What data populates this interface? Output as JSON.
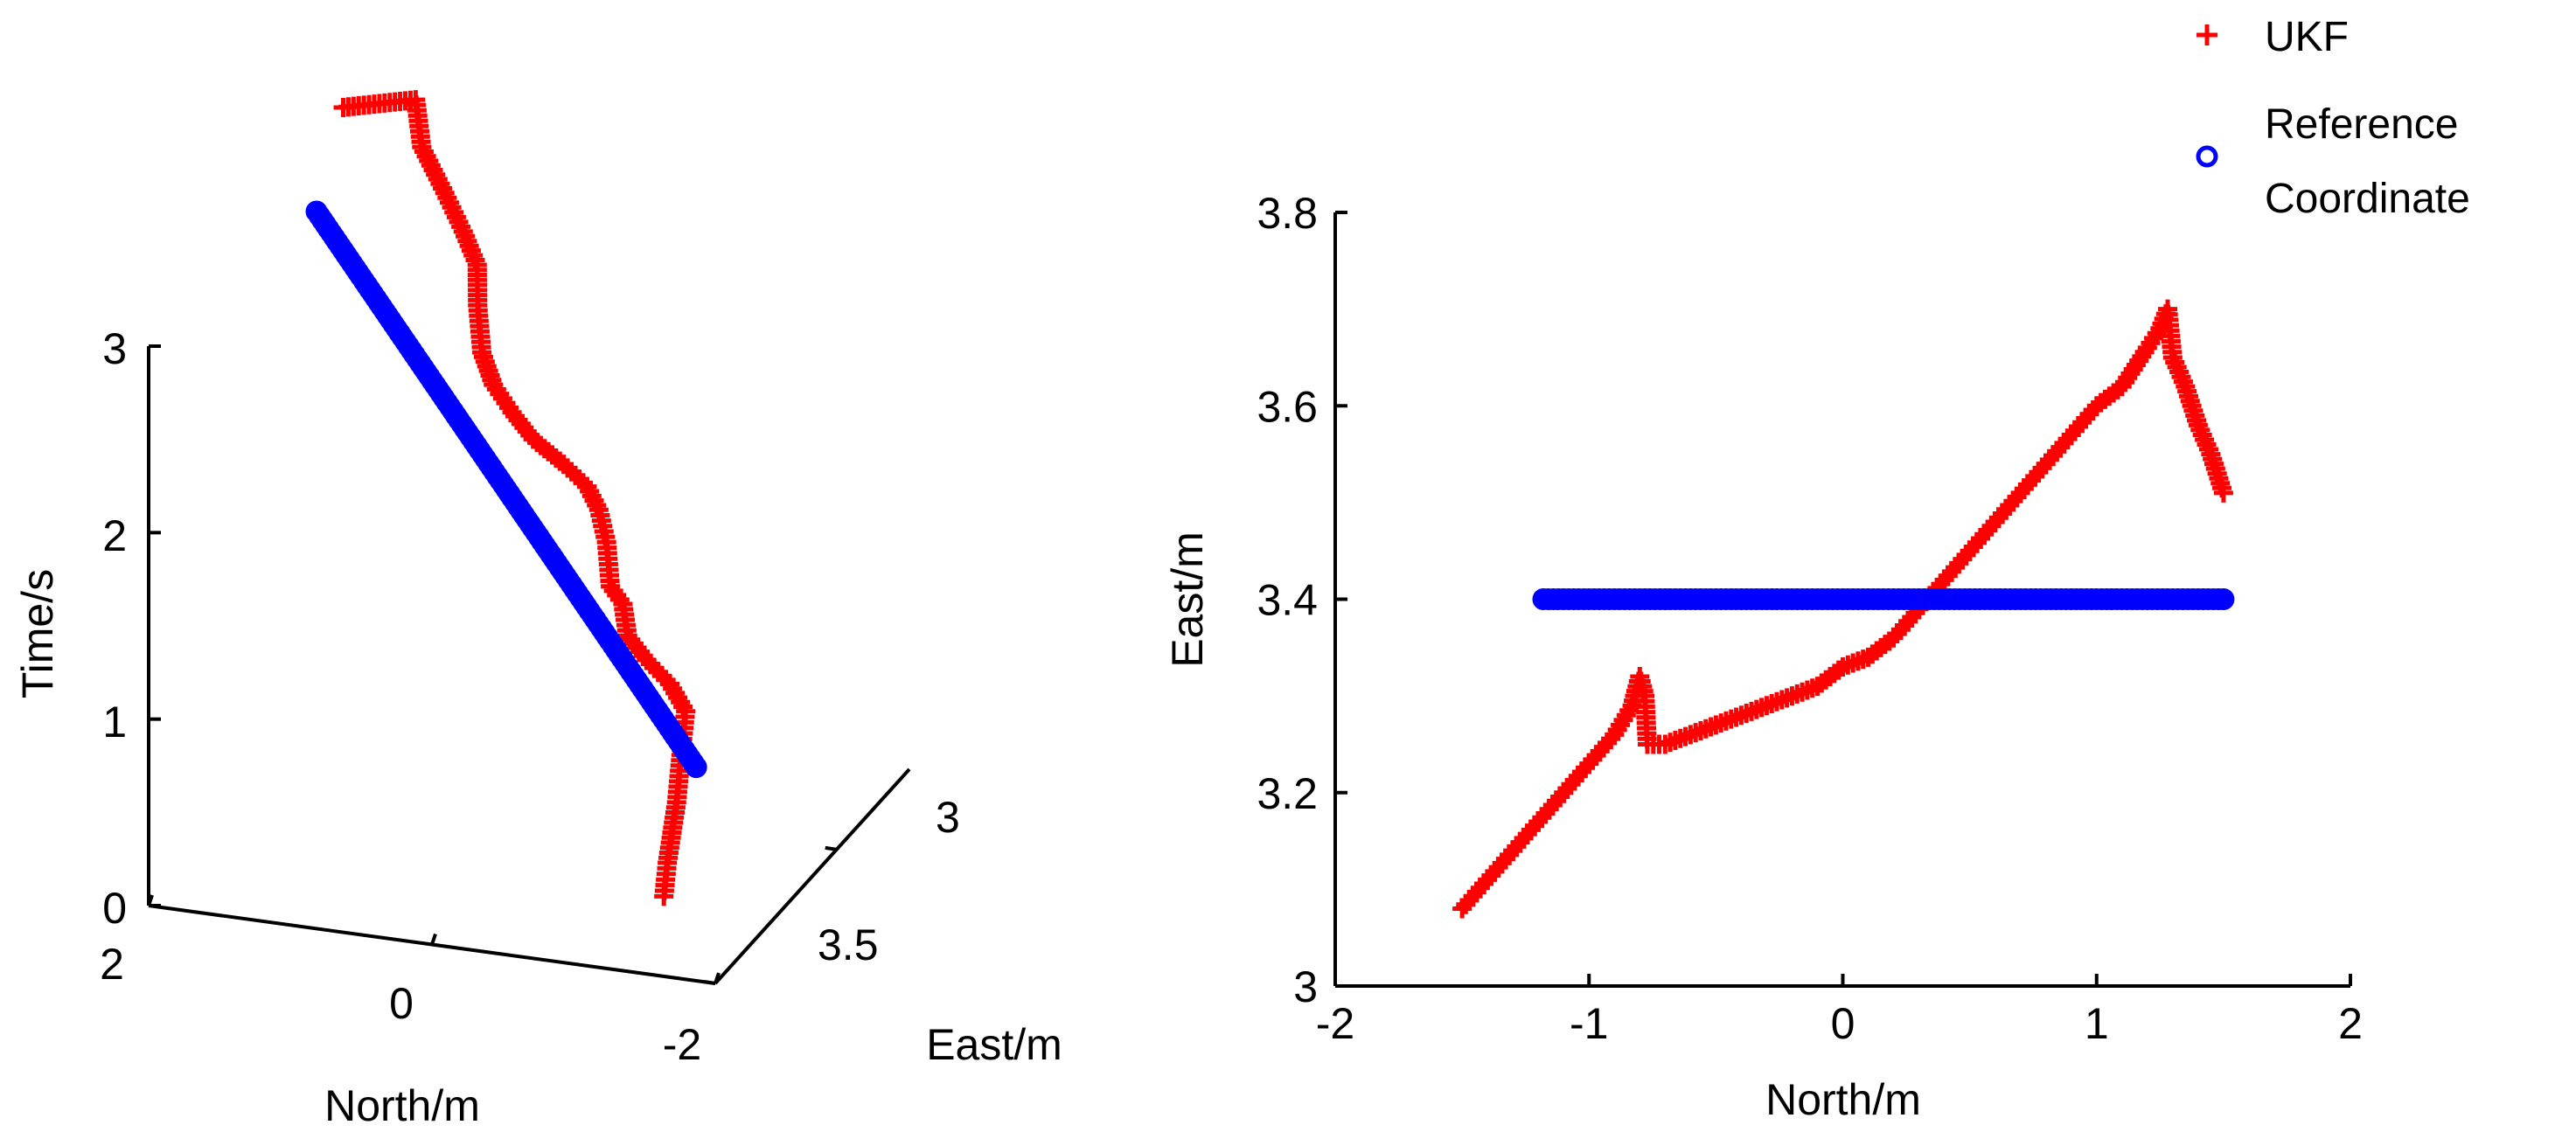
{
  "legend": {
    "placement": "top-right",
    "entries": [
      {
        "label": "UKF",
        "color": "#ff0000",
        "marker": "plus"
      },
      {
        "label_lines": [
          "Reference",
          "Coordinate"
        ],
        "color": "#0000ff",
        "marker": "circle"
      }
    ]
  },
  "chart_data": [
    {
      "type": "line3d",
      "title": "",
      "xlabel": "North/m",
      "ylabel": "East/m",
      "zlabel": "Time/s",
      "x_ticks": [
        "2",
        "0",
        "-2"
      ],
      "y_ticks": [
        "3",
        "3.5"
      ],
      "z_ticks": [
        "0",
        "1",
        "2",
        "3"
      ],
      "x_range": [
        2,
        -2
      ],
      "y_range": [
        3.0,
        3.8
      ],
      "z_range": [
        0,
        3
      ],
      "grid": false,
      "series": [
        {
          "name": "UKF",
          "color": "#ff0000",
          "marker": "plus",
          "points": [
            [
              -1.5,
              3.08,
              0.3
            ],
            [
              -1.49,
              3.1,
              0.45
            ],
            [
              -1.47,
              3.15,
              0.7
            ],
            [
              -1.44,
              3.19,
              0.95
            ],
            [
              -1.38,
              3.24,
              1.05
            ],
            [
              -1.2,
              3.28,
              1.12
            ],
            [
              -1.0,
              3.3,
              1.2
            ],
            [
              -0.85,
              3.31,
              1.3
            ],
            [
              -0.8,
              3.32,
              1.45
            ],
            [
              -0.78,
              3.28,
              1.6
            ],
            [
              -0.77,
              3.27,
              1.85
            ],
            [
              -0.75,
              3.25,
              2.05
            ],
            [
              -0.65,
              3.26,
              2.15
            ],
            [
              -0.45,
              3.28,
              2.22
            ],
            [
              -0.2,
              3.3,
              2.3
            ],
            [
              0.0,
              3.33,
              2.38
            ],
            [
              0.2,
              3.37,
              2.45
            ],
            [
              0.35,
              3.41,
              2.55
            ],
            [
              0.38,
              3.41,
              2.8
            ],
            [
              0.4,
              3.42,
              3.0
            ],
            [
              0.55,
              3.45,
              3.12
            ],
            [
              0.8,
              3.52,
              3.2
            ],
            [
              1.1,
              3.6,
              3.3
            ],
            [
              1.28,
              3.68,
              3.42
            ],
            [
              1.5,
              3.51,
              3.6
            ]
          ]
        },
        {
          "name": "Reference Coordinate",
          "color": "#0000ff",
          "marker": "circle",
          "points": [
            [
              -1.18,
              3.4,
              0.5
            ],
            [
              1.5,
              3.4,
              3.2
            ]
          ]
        }
      ]
    },
    {
      "type": "line",
      "title": "",
      "xlabel": "North/m",
      "ylabel": "East/m",
      "xlim": [
        -2,
        2
      ],
      "ylim": [
        3,
        3.8
      ],
      "x_ticks": [
        "-2",
        "-1",
        "0",
        "1",
        "2"
      ],
      "y_ticks": [
        "3",
        "3.2",
        "3.4",
        "3.6",
        "3.8"
      ],
      "grid": false,
      "series": [
        {
          "name": "UKF",
          "color": "#ff0000",
          "marker": "plus",
          "x": [
            -1.5,
            -1.4,
            -1.3,
            -1.2,
            -1.1,
            -1.0,
            -0.9,
            -0.83,
            -0.8,
            -0.78,
            -0.77,
            -0.7,
            -0.6,
            -0.5,
            -0.4,
            -0.3,
            -0.2,
            -0.1,
            0.0,
            0.1,
            0.2,
            0.3,
            0.4,
            0.5,
            0.6,
            0.7,
            0.8,
            0.9,
            1.0,
            1.1,
            1.2,
            1.25,
            1.28,
            1.3,
            1.35,
            1.4,
            1.45,
            1.5
          ],
          "y": [
            3.08,
            3.11,
            3.14,
            3.17,
            3.2,
            3.23,
            3.26,
            3.29,
            3.32,
            3.3,
            3.25,
            3.25,
            3.26,
            3.27,
            3.28,
            3.29,
            3.3,
            3.31,
            3.33,
            3.34,
            3.36,
            3.39,
            3.42,
            3.45,
            3.48,
            3.51,
            3.54,
            3.57,
            3.6,
            3.62,
            3.66,
            3.68,
            3.7,
            3.65,
            3.62,
            3.58,
            3.55,
            3.51
          ]
        },
        {
          "name": "Reference Coordinate",
          "color": "#0000ff",
          "marker": "circle",
          "x": [
            -1.18,
            -1.1,
            -1.0,
            -0.9,
            -0.8,
            -0.7,
            -0.6,
            -0.5,
            -0.4,
            -0.3,
            -0.2,
            -0.1,
            0.0,
            0.1,
            0.2,
            0.3,
            0.4,
            0.5,
            0.6,
            0.7,
            0.8,
            0.9,
            1.0,
            1.1,
            1.2,
            1.3,
            1.4,
            1.5
          ],
          "y": [
            3.4,
            3.4,
            3.4,
            3.4,
            3.4,
            3.4,
            3.4,
            3.4,
            3.4,
            3.4,
            3.4,
            3.4,
            3.4,
            3.4,
            3.4,
            3.4,
            3.4,
            3.4,
            3.4,
            3.4,
            3.4,
            3.4,
            3.4,
            3.4,
            3.4,
            3.4,
            3.4,
            3.4
          ]
        }
      ]
    }
  ]
}
